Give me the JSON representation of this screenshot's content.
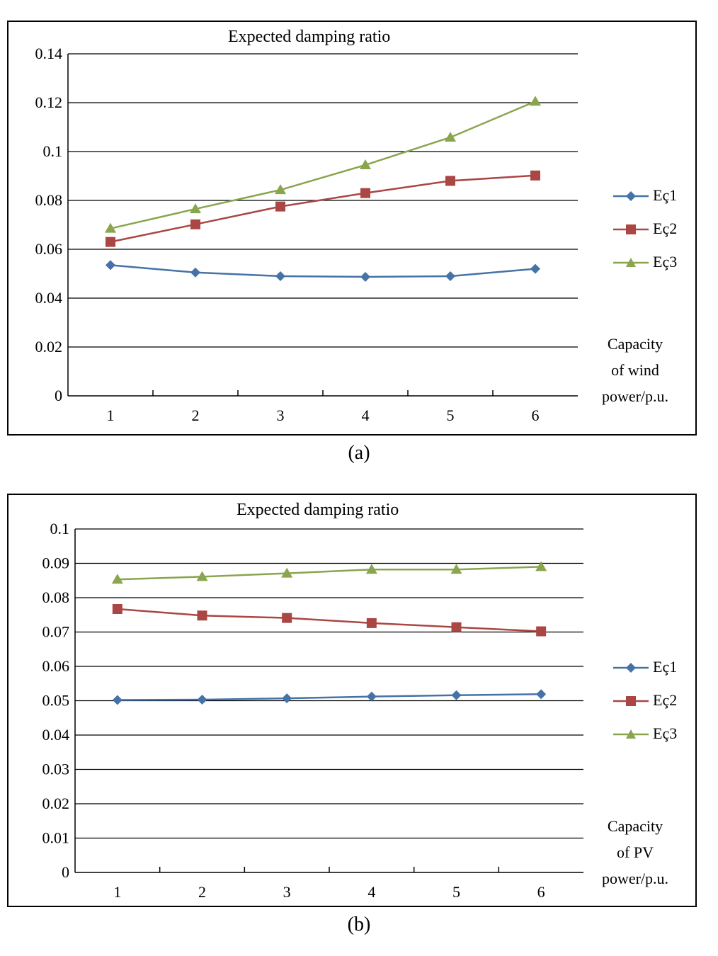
{
  "figure": {
    "caption_a": "(a)",
    "caption_b": "(b)"
  },
  "chart_data": [
    {
      "type": "line",
      "title": "Expected damping ratio",
      "xlabel": "Capacity of wind power/p.u.",
      "xlabel_lines": [
        "Capacity",
        "of wind",
        "power/p.u."
      ],
      "ylabel": "",
      "categories": [
        "1",
        "2",
        "3",
        "4",
        "5",
        "6"
      ],
      "ylim": [
        0,
        0.14
      ],
      "yticks": [
        "0",
        "0.02",
        "0.04",
        "0.06",
        "0.08",
        "0.1",
        "0.12",
        "0.14"
      ],
      "grid": true,
      "legend_position": "right",
      "series": [
        {
          "name": "Eç1",
          "color": "#4572A7",
          "marker": "diamond",
          "values": [
            0.0535,
            0.0505,
            0.049,
            0.0487,
            0.049,
            0.052
          ]
        },
        {
          "name": "Eç2",
          "color": "#AA4643",
          "marker": "square",
          "values": [
            0.063,
            0.0702,
            0.0775,
            0.083,
            0.088,
            0.0902
          ]
        },
        {
          "name": "Eç3",
          "color": "#89A54E",
          "marker": "triangle",
          "values": [
            0.0685,
            0.0765,
            0.0843,
            0.0945,
            0.1058,
            0.1205
          ]
        }
      ]
    },
    {
      "type": "line",
      "title": "Expected damping ratio",
      "xlabel": "Capacity of PV power/p.u.",
      "xlabel_lines": [
        "Capacity",
        "of PV",
        "power/p.u."
      ],
      "ylabel": "",
      "categories": [
        "1",
        "2",
        "3",
        "4",
        "5",
        "6"
      ],
      "ylim": [
        0,
        0.1
      ],
      "yticks": [
        "0",
        "0.01",
        "0.02",
        "0.03",
        "0.04",
        "0.05",
        "0.06",
        "0.07",
        "0.08",
        "0.09",
        "0.1"
      ],
      "grid": true,
      "legend_position": "right",
      "series": [
        {
          "name": "Eç1",
          "color": "#4572A7",
          "marker": "diamond",
          "values": [
            0.0502,
            0.0503,
            0.0507,
            0.0512,
            0.0516,
            0.0519
          ]
        },
        {
          "name": "Eç2",
          "color": "#AA4643",
          "marker": "square",
          "values": [
            0.0767,
            0.0748,
            0.0741,
            0.0726,
            0.0714,
            0.0702
          ]
        },
        {
          "name": "Eç3",
          "color": "#89A54E",
          "marker": "triangle",
          "values": [
            0.0853,
            0.0861,
            0.0871,
            0.0882,
            0.0882,
            0.089
          ]
        }
      ]
    }
  ]
}
